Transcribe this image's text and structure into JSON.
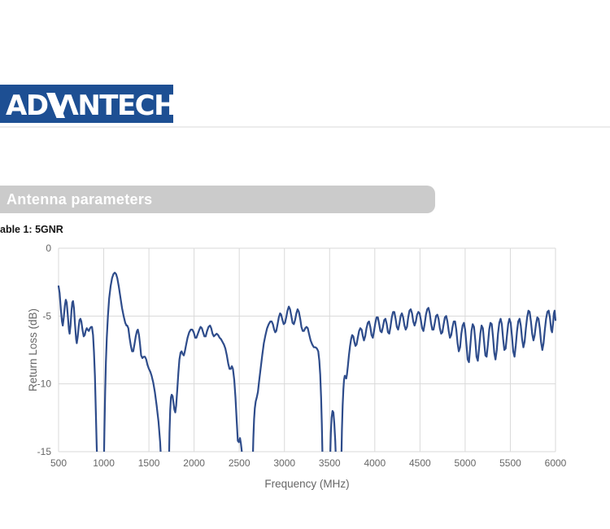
{
  "header": {
    "logo_left": "AD",
    "logo_right": "ΛNTECH",
    "logo_bg": "#1d4f93",
    "divider_color": "#ececec"
  },
  "section": {
    "title": "Antenna parameters",
    "bar_color": "#cbcbcb",
    "title_color": "#ffffff"
  },
  "caption": "able 1: 5GNR",
  "chart_data": {
    "type": "line",
    "title": "",
    "xlabel": "Frequency (MHz)",
    "ylabel": "Return Loss (dB)",
    "xlim": [
      500,
      6000
    ],
    "ylim": [
      -15,
      0
    ],
    "x_ticks": [
      500,
      1000,
      1500,
      2000,
      2500,
      3000,
      3500,
      4000,
      4500,
      5000,
      5500,
      6000
    ],
    "y_ticks": [
      0,
      -5,
      -10,
      -15
    ],
    "grid": true,
    "legend": "none",
    "line_color": "#2e4c8b",
    "grid_color": "#d9d9d9",
    "tick_color": "#666666",
    "points": [
      [
        500,
        -2.8
      ],
      [
        512,
        -3.3
      ],
      [
        525,
        -4.5
      ],
      [
        538,
        -5.4
      ],
      [
        547,
        -5.7
      ],
      [
        558,
        -5.1
      ],
      [
        570,
        -4.2
      ],
      [
        580,
        -3.8
      ],
      [
        590,
        -4.0
      ],
      [
        602,
        -4.9
      ],
      [
        614,
        -6.0
      ],
      [
        622,
        -6.3
      ],
      [
        632,
        -5.7
      ],
      [
        643,
        -4.6
      ],
      [
        652,
        -4.0
      ],
      [
        660,
        -3.9
      ],
      [
        670,
        -4.4
      ],
      [
        682,
        -5.6
      ],
      [
        694,
        -6.7
      ],
      [
        702,
        -7.0
      ],
      [
        712,
        -6.5
      ],
      [
        722,
        -5.8
      ],
      [
        732,
        -5.3
      ],
      [
        742,
        -5.2
      ],
      [
        752,
        -5.4
      ],
      [
        765,
        -6.0
      ],
      [
        778,
        -6.5
      ],
      [
        790,
        -6.4
      ],
      [
        800,
        -6.1
      ],
      [
        812,
        -5.9
      ],
      [
        822,
        -6.0
      ],
      [
        835,
        -6.1
      ],
      [
        848,
        -5.9
      ],
      [
        860,
        -5.8
      ],
      [
        870,
        -5.8
      ],
      [
        882,
        -6.4
      ],
      [
        892,
        -7.6
      ],
      [
        902,
        -9.4
      ],
      [
        912,
        -12.0
      ],
      [
        922,
        -14.6
      ],
      [
        928,
        -15.6
      ],
      [
        1002,
        -15.6
      ],
      [
        1008,
        -13.4
      ],
      [
        1016,
        -10.6
      ],
      [
        1024,
        -8.4
      ],
      [
        1034,
        -6.6
      ],
      [
        1046,
        -5.0
      ],
      [
        1060,
        -3.7
      ],
      [
        1076,
        -2.8
      ],
      [
        1092,
        -2.2
      ],
      [
        1108,
        -1.9
      ],
      [
        1122,
        -1.8
      ],
      [
        1136,
        -1.9
      ],
      [
        1150,
        -2.2
      ],
      [
        1166,
        -2.8
      ],
      [
        1184,
        -3.6
      ],
      [
        1202,
        -4.4
      ],
      [
        1220,
        -5.0
      ],
      [
        1238,
        -5.5
      ],
      [
        1252,
        -5.7
      ],
      [
        1260,
        -5.7
      ],
      [
        1272,
        -5.9
      ],
      [
        1286,
        -6.6
      ],
      [
        1300,
        -7.2
      ],
      [
        1314,
        -7.6
      ],
      [
        1326,
        -7.6
      ],
      [
        1340,
        -7.1
      ],
      [
        1354,
        -6.5
      ],
      [
        1368,
        -6.1
      ],
      [
        1378,
        -6.0
      ],
      [
        1390,
        -6.4
      ],
      [
        1402,
        -7.1
      ],
      [
        1414,
        -7.9
      ],
      [
        1428,
        -8.1
      ],
      [
        1442,
        -8.0
      ],
      [
        1456,
        -8.0
      ],
      [
        1470,
        -8.2
      ],
      [
        1484,
        -8.6
      ],
      [
        1500,
        -8.9
      ],
      [
        1515,
        -9.1
      ],
      [
        1530,
        -9.4
      ],
      [
        1548,
        -9.9
      ],
      [
        1566,
        -10.6
      ],
      [
        1586,
        -11.6
      ],
      [
        1606,
        -12.8
      ],
      [
        1624,
        -14.3
      ],
      [
        1634,
        -15.6
      ],
      [
        1722,
        -15.6
      ],
      [
        1728,
        -13.6
      ],
      [
        1736,
        -11.9
      ],
      [
        1744,
        -11.0
      ],
      [
        1752,
        -10.8
      ],
      [
        1762,
        -10.9
      ],
      [
        1772,
        -11.4
      ],
      [
        1782,
        -11.9
      ],
      [
        1792,
        -12.1
      ],
      [
        1802,
        -11.6
      ],
      [
        1814,
        -10.4
      ],
      [
        1826,
        -9.2
      ],
      [
        1838,
        -8.2
      ],
      [
        1850,
        -7.7
      ],
      [
        1862,
        -7.6
      ],
      [
        1874,
        -7.8
      ],
      [
        1886,
        -7.9
      ],
      [
        1898,
        -7.6
      ],
      [
        1912,
        -7.1
      ],
      [
        1928,
        -6.6
      ],
      [
        1946,
        -6.2
      ],
      [
        1964,
        -6.0
      ],
      [
        1980,
        -6.0
      ],
      [
        1996,
        -6.2
      ],
      [
        2012,
        -6.6
      ],
      [
        2026,
        -6.6
      ],
      [
        2042,
        -6.3
      ],
      [
        2058,
        -6.0
      ],
      [
        2072,
        -5.8
      ],
      [
        2086,
        -5.9
      ],
      [
        2100,
        -6.2
      ],
      [
        2114,
        -6.5
      ],
      [
        2128,
        -6.5
      ],
      [
        2144,
        -6.1
      ],
      [
        2160,
        -5.8
      ],
      [
        2176,
        -5.7
      ],
      [
        2190,
        -5.9
      ],
      [
        2204,
        -6.3
      ],
      [
        2218,
        -6.5
      ],
      [
        2234,
        -6.4
      ],
      [
        2250,
        -6.3
      ],
      [
        2266,
        -6.4
      ],
      [
        2282,
        -6.6
      ],
      [
        2298,
        -6.7
      ],
      [
        2314,
        -6.9
      ],
      [
        2330,
        -7.1
      ],
      [
        2346,
        -7.4
      ],
      [
        2362,
        -7.9
      ],
      [
        2378,
        -8.5
      ],
      [
        2392,
        -8.9
      ],
      [
        2406,
        -8.9
      ],
      [
        2418,
        -8.7
      ],
      [
        2430,
        -8.9
      ],
      [
        2444,
        -9.7
      ],
      [
        2458,
        -11.0
      ],
      [
        2472,
        -12.8
      ],
      [
        2484,
        -14.2
      ],
      [
        2496,
        -14.3
      ],
      [
        2508,
        -14.0
      ],
      [
        2518,
        -14.4
      ],
      [
        2532,
        -15.2
      ],
      [
        2538,
        -15.6
      ],
      [
        2650,
        -15.6
      ],
      [
        2656,
        -14.0
      ],
      [
        2664,
        -12.6
      ],
      [
        2672,
        -11.8
      ],
      [
        2682,
        -11.3
      ],
      [
        2694,
        -11.0
      ],
      [
        2706,
        -10.6
      ],
      [
        2720,
        -9.8
      ],
      [
        2736,
        -8.9
      ],
      [
        2754,
        -7.9
      ],
      [
        2772,
        -7.0
      ],
      [
        2790,
        -6.4
      ],
      [
        2808,
        -5.9
      ],
      [
        2826,
        -5.6
      ],
      [
        2844,
        -5.4
      ],
      [
        2858,
        -5.4
      ],
      [
        2872,
        -5.6
      ],
      [
        2886,
        -6.0
      ],
      [
        2898,
        -6.2
      ],
      [
        2910,
        -6.1
      ],
      [
        2924,
        -5.6
      ],
      [
        2938,
        -5.1
      ],
      [
        2952,
        -4.8
      ],
      [
        2964,
        -4.9
      ],
      [
        2978,
        -5.3
      ],
      [
        2992,
        -5.6
      ],
      [
        3006,
        -5.5
      ],
      [
        3020,
        -5.1
      ],
      [
        3034,
        -4.6
      ],
      [
        3048,
        -4.3
      ],
      [
        3062,
        -4.5
      ],
      [
        3076,
        -5.0
      ],
      [
        3090,
        -5.5
      ],
      [
        3104,
        -5.6
      ],
      [
        3118,
        -5.3
      ],
      [
        3132,
        -4.8
      ],
      [
        3146,
        -4.5
      ],
      [
        3160,
        -4.7
      ],
      [
        3174,
        -5.2
      ],
      [
        3188,
        -5.8
      ],
      [
        3202,
        -6.1
      ],
      [
        3216,
        -6.1
      ],
      [
        3230,
        -5.9
      ],
      [
        3244,
        -5.8
      ],
      [
        3258,
        -5.9
      ],
      [
        3272,
        -6.3
      ],
      [
        3290,
        -6.8
      ],
      [
        3308,
        -7.1
      ],
      [
        3326,
        -7.3
      ],
      [
        3344,
        -7.3
      ],
      [
        3360,
        -7.4
      ],
      [
        3374,
        -7.6
      ],
      [
        3386,
        -8.3
      ],
      [
        3396,
        -9.3
      ],
      [
        3406,
        -11.0
      ],
      [
        3414,
        -13.0
      ],
      [
        3422,
        -15.6
      ],
      [
        3506,
        -15.6
      ],
      [
        3514,
        -13.6
      ],
      [
        3522,
        -12.5
      ],
      [
        3532,
        -12.0
      ],
      [
        3542,
        -12.1
      ],
      [
        3552,
        -12.9
      ],
      [
        3562,
        -14.2
      ],
      [
        3570,
        -15.6
      ],
      [
        3630,
        -15.6
      ],
      [
        3636,
        -13.4
      ],
      [
        3644,
        -11.6
      ],
      [
        3652,
        -10.4
      ],
      [
        3660,
        -9.7
      ],
      [
        3668,
        -9.4
      ],
      [
        3676,
        -9.5
      ],
      [
        3684,
        -9.6
      ],
      [
        3692,
        -9.3
      ],
      [
        3702,
        -8.7
      ],
      [
        3714,
        -7.9
      ],
      [
        3726,
        -7.2
      ],
      [
        3738,
        -6.7
      ],
      [
        3750,
        -6.4
      ],
      [
        3762,
        -6.5
      ],
      [
        3774,
        -6.9
      ],
      [
        3786,
        -7.2
      ],
      [
        3798,
        -7.1
      ],
      [
        3812,
        -6.6
      ],
      [
        3826,
        -6.1
      ],
      [
        3840,
        -5.9
      ],
      [
        3854,
        -6.0
      ],
      [
        3868,
        -6.5
      ],
      [
        3880,
        -6.8
      ],
      [
        3894,
        -6.5
      ],
      [
        3908,
        -5.9
      ],
      [
        3922,
        -5.5
      ],
      [
        3936,
        -5.4
      ],
      [
        3950,
        -5.8
      ],
      [
        3964,
        -6.4
      ],
      [
        3978,
        -6.6
      ],
      [
        3992,
        -6.1
      ],
      [
        4006,
        -5.5
      ],
      [
        4020,
        -5.1
      ],
      [
        4034,
        -5.1
      ],
      [
        4048,
        -5.6
      ],
      [
        4062,
        -6.1
      ],
      [
        4076,
        -6.2
      ],
      [
        4090,
        -5.8
      ],
      [
        4104,
        -5.3
      ],
      [
        4118,
        -5.2
      ],
      [
        4132,
        -5.6
      ],
      [
        4146,
        -6.2
      ],
      [
        4160,
        -6.3
      ],
      [
        4174,
        -5.8
      ],
      [
        4188,
        -5.1
      ],
      [
        4202,
        -4.7
      ],
      [
        4216,
        -4.7
      ],
      [
        4230,
        -5.2
      ],
      [
        4244,
        -5.8
      ],
      [
        4258,
        -6.0
      ],
      [
        4272,
        -5.6
      ],
      [
        4286,
        -5.0
      ],
      [
        4300,
        -4.8
      ],
      [
        4314,
        -5.1
      ],
      [
        4328,
        -5.7
      ],
      [
        4342,
        -6.0
      ],
      [
        4356,
        -5.8
      ],
      [
        4370,
        -5.1
      ],
      [
        4384,
        -4.6
      ],
      [
        4398,
        -4.5
      ],
      [
        4412,
        -4.8
      ],
      [
        4426,
        -5.4
      ],
      [
        4440,
        -5.7
      ],
      [
        4454,
        -5.4
      ],
      [
        4468,
        -4.9
      ],
      [
        4482,
        -4.7
      ],
      [
        4496,
        -4.8
      ],
      [
        4510,
        -5.3
      ],
      [
        4524,
        -5.9
      ],
      [
        4538,
        -6.1
      ],
      [
        4552,
        -5.6
      ],
      [
        4566,
        -4.9
      ],
      [
        4580,
        -4.5
      ],
      [
        4594,
        -4.4
      ],
      [
        4608,
        -4.8
      ],
      [
        4622,
        -5.5
      ],
      [
        4636,
        -6.0
      ],
      [
        4650,
        -6.0
      ],
      [
        4664,
        -5.5
      ],
      [
        4678,
        -5.0
      ],
      [
        4692,
        -4.9
      ],
      [
        4706,
        -5.2
      ],
      [
        4720,
        -5.9
      ],
      [
        4734,
        -6.3
      ],
      [
        4748,
        -6.2
      ],
      [
        4762,
        -5.6
      ],
      [
        4776,
        -5.1
      ],
      [
        4790,
        -5.0
      ],
      [
        4804,
        -5.4
      ],
      [
        4818,
        -6.1
      ],
      [
        4832,
        -6.6
      ],
      [
        4846,
        -6.4
      ],
      [
        4860,
        -5.8
      ],
      [
        4874,
        -5.4
      ],
      [
        4888,
        -5.4
      ],
      [
        4902,
        -6.0
      ],
      [
        4916,
        -7.0
      ],
      [
        4930,
        -7.6
      ],
      [
        4944,
        -7.3
      ],
      [
        4958,
        -6.3
      ],
      [
        4972,
        -5.7
      ],
      [
        4986,
        -5.5
      ],
      [
        5000,
        -6.0
      ],
      [
        5014,
        -7.1
      ],
      [
        5028,
        -8.2
      ],
      [
        5042,
        -8.4
      ],
      [
        5056,
        -7.3
      ],
      [
        5070,
        -6.1
      ],
      [
        5084,
        -5.6
      ],
      [
        5098,
        -5.8
      ],
      [
        5112,
        -6.8
      ],
      [
        5126,
        -8.0
      ],
      [
        5140,
        -8.3
      ],
      [
        5154,
        -7.4
      ],
      [
        5168,
        -6.3
      ],
      [
        5182,
        -5.7
      ],
      [
        5196,
        -5.9
      ],
      [
        5210,
        -6.9
      ],
      [
        5224,
        -7.9
      ],
      [
        5238,
        -8.0
      ],
      [
        5252,
        -7.1
      ],
      [
        5266,
        -6.0
      ],
      [
        5280,
        -5.5
      ],
      [
        5294,
        -5.6
      ],
      [
        5308,
        -6.5
      ],
      [
        5322,
        -7.7
      ],
      [
        5336,
        -8.2
      ],
      [
        5350,
        -7.5
      ],
      [
        5364,
        -6.3
      ],
      [
        5378,
        -5.5
      ],
      [
        5392,
        -5.2
      ],
      [
        5406,
        -5.6
      ],
      [
        5420,
        -6.7
      ],
      [
        5434,
        -7.5
      ],
      [
        5448,
        -7.4
      ],
      [
        5462,
        -6.5
      ],
      [
        5476,
        -5.6
      ],
      [
        5490,
        -5.2
      ],
      [
        5504,
        -5.5
      ],
      [
        5518,
        -6.5
      ],
      [
        5532,
        -7.6
      ],
      [
        5546,
        -8.0
      ],
      [
        5560,
        -7.2
      ],
      [
        5574,
        -6.1
      ],
      [
        5588,
        -5.4
      ],
      [
        5602,
        -5.2
      ],
      [
        5616,
        -5.7
      ],
      [
        5630,
        -6.7
      ],
      [
        5644,
        -7.3
      ],
      [
        5658,
        -6.9
      ],
      [
        5672,
        -5.9
      ],
      [
        5686,
        -5.1
      ],
      [
        5700,
        -4.6
      ],
      [
        5714,
        -4.7
      ],
      [
        5728,
        -5.4
      ],
      [
        5742,
        -6.3
      ],
      [
        5756,
        -6.8
      ],
      [
        5770,
        -6.4
      ],
      [
        5784,
        -5.6
      ],
      [
        5798,
        -5.1
      ],
      [
        5812,
        -5.2
      ],
      [
        5826,
        -5.9
      ],
      [
        5840,
        -6.9
      ],
      [
        5854,
        -7.5
      ],
      [
        5868,
        -7.0
      ],
      [
        5882,
        -6.0
      ],
      [
        5896,
        -5.2
      ],
      [
        5910,
        -4.7
      ],
      [
        5924,
        -4.6
      ],
      [
        5938,
        -5.1
      ],
      [
        5952,
        -6.0
      ],
      [
        5962,
        -6.2
      ],
      [
        5972,
        -5.6
      ],
      [
        5982,
        -4.8
      ],
      [
        5990,
        -4.6
      ],
      [
        6000,
        -5.3
      ]
    ]
  }
}
